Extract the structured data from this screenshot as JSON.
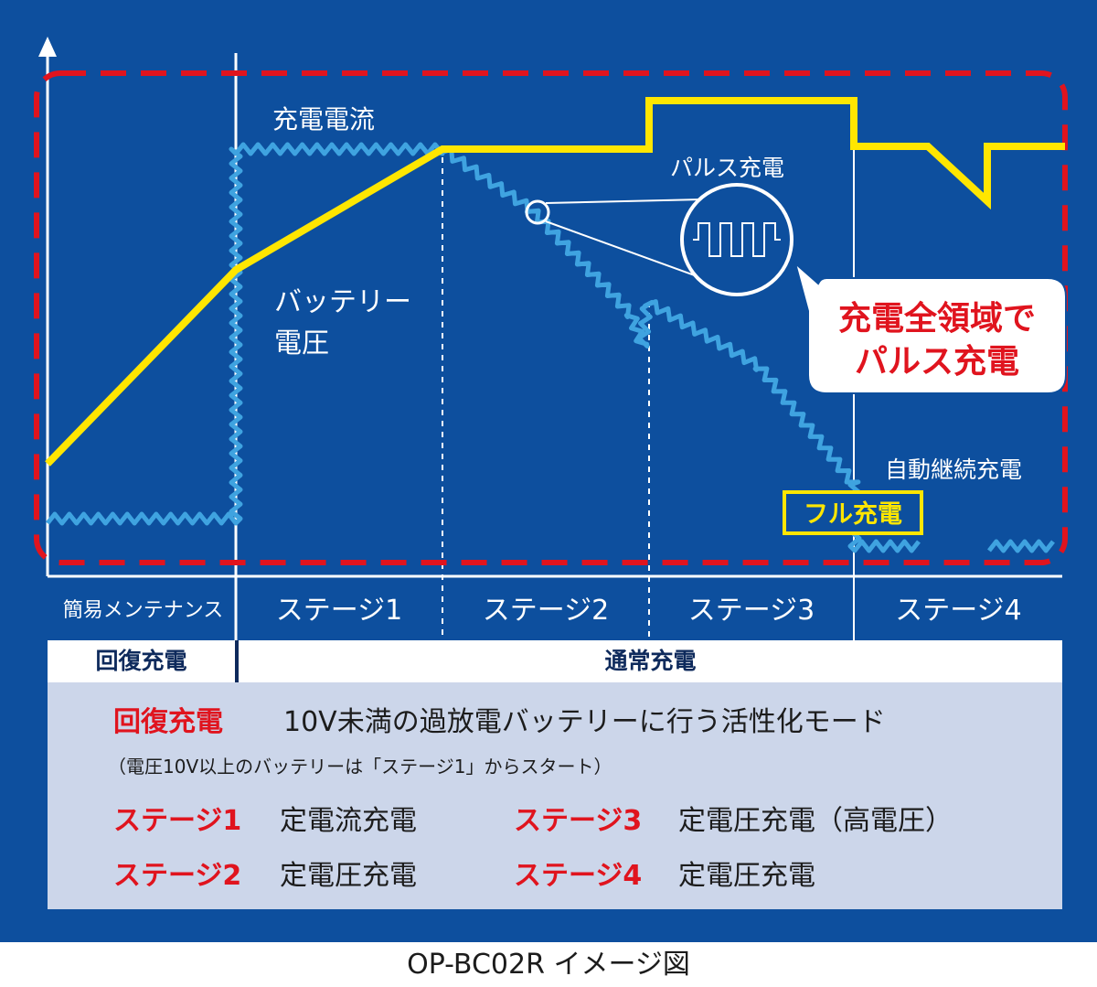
{
  "diagram": {
    "labels": {
      "charge_current": "充電電流",
      "battery_voltage_line1": "バッテリー",
      "battery_voltage_line2": "電圧",
      "pulse_charge": "パルス充電",
      "callout_line1": "充電全領域で",
      "callout_line2": "パルス充電",
      "auto_continuous": "自動継続充電",
      "full_charge": "フル充電"
    },
    "stages": [
      "簡易メンテナンス",
      "ステージ1",
      "ステージ2",
      "ステージ3",
      "ステージ4"
    ],
    "modes": {
      "recovery": "回復充電",
      "normal": "通常充電"
    }
  },
  "legend": {
    "recovery_term": "回復充電",
    "recovery_desc": "10V未満の過放電バッテリーに行う活性化モード",
    "note": "（電圧10V以上のバッテリーは「ステージ1」からスタート）",
    "items": [
      {
        "term": "ステージ1",
        "desc": "定電流充電"
      },
      {
        "term": "ステージ2",
        "desc": "定電圧充電"
      },
      {
        "term": "ステージ3",
        "desc": "定電圧充電（高電圧）"
      },
      {
        "term": "ステージ4",
        "desc": "定電圧充電"
      }
    ]
  },
  "caption": "OP-BC02R イメージ図",
  "colors": {
    "background": "#0d4f9e",
    "voltage_line": "#ffe600",
    "current_line": "#3fa3e0",
    "boundary_dash": "#e0141e",
    "legend_bg": "#ccd6ea",
    "accent_red": "#e0141e"
  }
}
